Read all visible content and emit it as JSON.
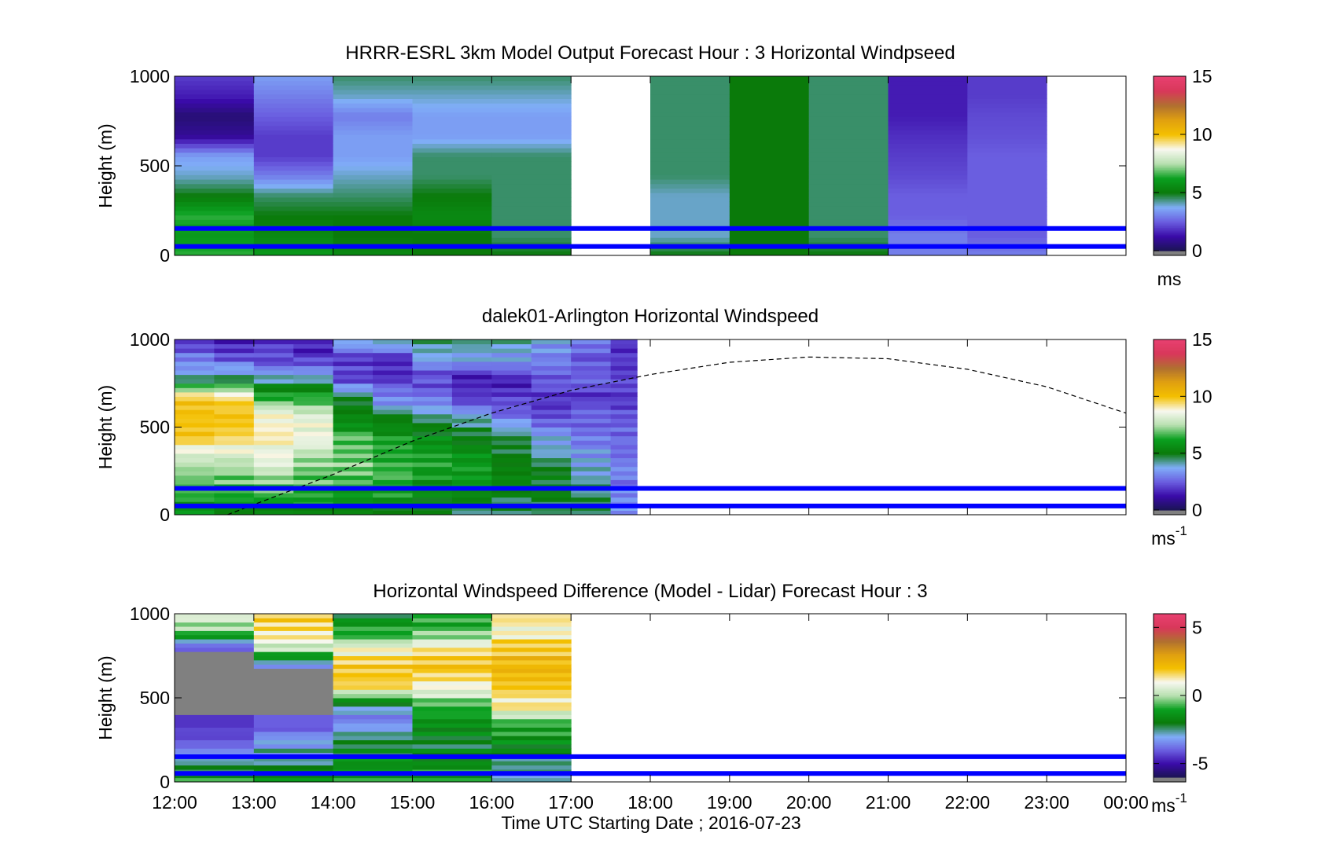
{
  "figure": {
    "xlabel": "Time UTC  Starting Date ; 2016-07-23",
    "x_ticks": [
      "12:00",
      "13:00",
      "14:00",
      "15:00",
      "16:00",
      "17:00",
      "18:00",
      "19:00",
      "20:00",
      "21:00",
      "22:00",
      "23:00",
      "00:00"
    ]
  },
  "colors": {
    "reference_lines": "#0000ff",
    "missing": "#808080",
    "colormap": [
      "#808080",
      "#1a1452",
      "#3a0aa8",
      "#6a5ee0",
      "#80aef8",
      "#0a7a0a",
      "#0aa020",
      "#b8e0b0",
      "#f8f8f0",
      "#f4c000",
      "#e0a010",
      "#b07030",
      "#d8385a",
      "#e84070"
    ]
  },
  "chart_data": [
    {
      "type": "heatmap",
      "title": "HRRR-ESRL 3km Model Output   Forecast Hour : 3 Horizontal Windpseed",
      "ylabel": "Height (m)",
      "ylim": [
        0,
        1000
      ],
      "yticks": [
        "0",
        "500",
        "1000"
      ],
      "xlim": [
        "12:00",
        "00:00"
      ],
      "colorbar": {
        "min": 0,
        "max": 15,
        "ticks": [
          "0",
          "5",
          "10",
          "15"
        ],
        "unit": "ms"
      },
      "reference_lines_m": [
        150,
        50
      ],
      "columns": [
        {
          "start": "12:00",
          "end": "13:00",
          "profile_ms": [
            6.5,
            6,
            6.5,
            5,
            4,
            3.5,
            1,
            0.5,
            1.5,
            2
          ]
        },
        {
          "start": "13:00",
          "end": "14:00",
          "profile_ms": [
            6,
            5.5,
            5,
            4.5,
            3,
            2,
            2,
            2.5,
            3,
            3.5
          ]
        },
        {
          "start": "14:00",
          "end": "15:00",
          "profile_ms": [
            5.5,
            5,
            5,
            4.5,
            4,
            3.5,
            3.5,
            3,
            4,
            4.5
          ]
        },
        {
          "start": "15:00",
          "end": "16:00",
          "profile_ms": [
            5,
            5,
            5.5,
            5,
            4.5,
            4.5,
            3.5,
            3.5,
            4,
            4.5
          ]
        },
        {
          "start": "16:00",
          "end": "17:00",
          "profile_ms": [
            5,
            4.5,
            4.5,
            4.5,
            4.5,
            4.5,
            3.5,
            3.5,
            4,
            4.5
          ]
        },
        {
          "start": "18:00",
          "end": "19:00",
          "profile_ms": [
            5,
            4,
            4,
            4,
            4.5,
            4.5,
            4.5,
            4.5,
            4.5,
            4.5
          ]
        },
        {
          "start": "19:00",
          "end": "20:00",
          "profile_ms": [
            5,
            5,
            5,
            5,
            5,
            5,
            5,
            5,
            5,
            5
          ]
        },
        {
          "start": "20:00",
          "end": "21:00",
          "profile_ms": [
            5,
            4.5,
            4.5,
            4.5,
            4.5,
            4.5,
            4.5,
            4.5,
            4.5,
            4.5
          ]
        },
        {
          "start": "21:00",
          "end": "22:00",
          "profile_ms": [
            3,
            3,
            2.5,
            2.5,
            2.2,
            2,
            1.8,
            1.5,
            1.5,
            1.5
          ]
        },
        {
          "start": "22:00",
          "end": "23:00",
          "profile_ms": [
            3,
            2.5,
            2.5,
            2.5,
            2.5,
            2.5,
            2.3,
            2.2,
            2,
            2
          ]
        }
      ]
    },
    {
      "type": "heatmap",
      "title": "dalek01-Arlington  Horizontal Windspeed",
      "ylabel": "Height (m)",
      "ylim": [
        0,
        1000
      ],
      "yticks": [
        "0",
        "500",
        "1000"
      ],
      "xlim": [
        "12:00",
        "00:00"
      ],
      "colorbar": {
        "min": 0,
        "max": 15,
        "ticks": [
          "0",
          "5",
          "10",
          "15"
        ],
        "unit": "ms-1"
      },
      "reference_lines_m": [
        150,
        50
      ],
      "data_end": "17:50",
      "boundary_layer_curve": {
        "x": [
          "12:40",
          "14:00",
          "15:00",
          "16:00",
          "17:00",
          "18:00",
          "19:00",
          "20:00",
          "21:00",
          "22:00",
          "23:00",
          "00:00"
        ],
        "y_m": [
          0,
          230,
          420,
          580,
          710,
          800,
          870,
          900,
          890,
          830,
          730,
          580
        ]
      },
      "columns": [
        {
          "start": "12:00",
          "end": "12:30",
          "profile_ms": [
            5.5,
            6.5,
            7,
            8,
            10,
            10,
            10,
            4,
            3,
            2
          ]
        },
        {
          "start": "12:30",
          "end": "13:00",
          "profile_ms": [
            5,
            6.5,
            7,
            8,
            9.5,
            10,
            9.5,
            4.5,
            2.5,
            1.5
          ]
        },
        {
          "start": "13:00",
          "end": "13:30",
          "profile_ms": [
            5,
            6.5,
            7.5,
            8.5,
            9,
            9,
            6.5,
            4,
            2,
            2
          ]
        },
        {
          "start": "13:30",
          "end": "14:00",
          "profile_ms": [
            5,
            6.5,
            7,
            7.5,
            8.5,
            8.5,
            6.5,
            4,
            2,
            1.5
          ]
        },
        {
          "start": "14:00",
          "end": "14:30",
          "profile_ms": [
            5,
            6,
            7,
            7,
            6.5,
            5.5,
            5,
            2,
            2,
            4
          ]
        },
        {
          "start": "14:30",
          "end": "15:00",
          "profile_ms": [
            4.5,
            6,
            6.5,
            6.5,
            6,
            5,
            3,
            2,
            1.5,
            4.5
          ]
        },
        {
          "start": "15:00",
          "end": "15:30",
          "profile_ms": [
            5,
            5.5,
            6,
            6.5,
            5.5,
            4.5,
            3,
            2,
            3.5,
            4.5
          ]
        },
        {
          "start": "15:30",
          "end": "16:00",
          "profile_ms": [
            4.5,
            5.5,
            6,
            6,
            5,
            4,
            2,
            1.5,
            3.5,
            4.5
          ]
        },
        {
          "start": "16:00",
          "end": "16:30",
          "profile_ms": [
            4.5,
            5,
            5.5,
            5,
            4.5,
            3,
            2,
            1.5,
            3.5,
            4.5
          ]
        },
        {
          "start": "16:30",
          "end": "17:00",
          "profile_ms": [
            4.5,
            5,
            5,
            4.5,
            3.5,
            2.5,
            2,
            2.5,
            3,
            3.5
          ]
        },
        {
          "start": "17:00",
          "end": "17:30",
          "profile_ms": [
            4.5,
            4.5,
            4,
            3.5,
            3,
            2.5,
            2,
            2.5,
            2.5,
            3
          ]
        },
        {
          "start": "17:30",
          "end": "17:50",
          "profile_ms": [
            3.5,
            3,
            3,
            3,
            2.5,
            2.5,
            2,
            2,
            2,
            2
          ]
        }
      ]
    },
    {
      "type": "heatmap",
      "title": "Horizontal Windspeed Difference (Model - Lidar) Forecast Hour : 3",
      "ylabel": "Height (m)",
      "ylim": [
        0,
        1000
      ],
      "yticks": [
        "0",
        "500",
        "1000"
      ],
      "xlim": [
        "12:00",
        "00:00"
      ],
      "colorbar": {
        "min": -6,
        "max": 6,
        "ticks": [
          "-5",
          "0",
          "5"
        ],
        "unit": "ms-1"
      },
      "reference_lines_m": [
        150,
        50
      ],
      "columns": [
        {
          "start": "12:00",
          "end": "13:00",
          "profile_dms": [
            -1,
            -2.5,
            -4,
            -4.5,
            null,
            null,
            null,
            -5,
            -0.5,
            1
          ]
        },
        {
          "start": "13:00",
          "end": "14:00",
          "profile_dms": [
            -1,
            -2.5,
            -3,
            -4,
            null,
            null,
            -4.5,
            0,
            1.5,
            2
          ]
        },
        {
          "start": "14:00",
          "end": "15:00",
          "profile_dms": [
            -1,
            -1.5,
            -2,
            -3.5,
            -3,
            1.5,
            2,
            1,
            -1,
            -2
          ]
        },
        {
          "start": "15:00",
          "end": "16:00",
          "profile_dms": [
            -1,
            -1.5,
            -2,
            -1.5,
            -1,
            1,
            2,
            1.5,
            -0.5,
            -1
          ]
        },
        {
          "start": "16:00",
          "end": "17:00",
          "profile_dms": [
            -3,
            -2.5,
            -1.5,
            -1,
            1,
            2,
            2.5,
            2,
            1,
            1.5
          ]
        }
      ]
    }
  ]
}
